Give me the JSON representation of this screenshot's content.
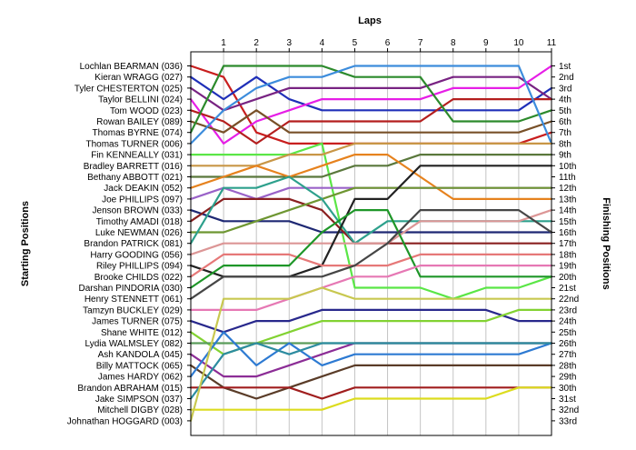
{
  "chart_data": {
    "type": "line",
    "title": "Laps",
    "ylabel_left": "Starting Positions",
    "ylabel_right": "Finishing Positions",
    "x": [
      0,
      1,
      2,
      3,
      4,
      5,
      6,
      7,
      8,
      9,
      10,
      11
    ],
    "x_tick_labels": [
      "1",
      "2",
      "3",
      "4",
      "5",
      "6",
      "7",
      "8",
      "9",
      "10",
      "11"
    ],
    "ylim": [
      1,
      33
    ],
    "y_inverted": true,
    "finishing_labels": [
      "1st",
      "2nd",
      "3rd",
      "4th",
      "5th",
      "6th",
      "7th",
      "8th",
      "9th",
      "10th",
      "11th",
      "12th",
      "13th",
      "14th",
      "15th",
      "16th",
      "17th",
      "18th",
      "19th",
      "20th",
      "21st",
      "22nd",
      "23rd",
      "24th",
      "25th",
      "26th",
      "27th",
      "28th",
      "29th",
      "30th",
      "31st",
      "32nd",
      "33rd"
    ],
    "series": [
      {
        "name": "Lochlan BEARMAN (036)",
        "color": "#c81e1e",
        "values": [
          1,
          2,
          7,
          8,
          8,
          8,
          8,
          8,
          8,
          8,
          8,
          7
        ]
      },
      {
        "name": "Kieran WRAGG (027)",
        "color": "#1f2fb8",
        "values": [
          2,
          4,
          2,
          4,
          5,
          5,
          5,
          5,
          5,
          5,
          5,
          3
        ]
      },
      {
        "name": "Tyler CHESTERTON (025)",
        "color": "#782382",
        "values": [
          3,
          5,
          4,
          3,
          3,
          3,
          3,
          3,
          2,
          2,
          2,
          4
        ]
      },
      {
        "name": "Taylor BELLINI (024)",
        "color": "#e61ee6",
        "values": [
          4,
          8,
          6,
          5,
          4,
          4,
          4,
          4,
          3,
          3,
          3,
          1
        ]
      },
      {
        "name": "Tom WOOD (023)",
        "color": "#b41e1e",
        "values": [
          5,
          6,
          8,
          6,
          6,
          6,
          6,
          6,
          4,
          4,
          4,
          4
        ]
      },
      {
        "name": "Rowan BAILEY (089)",
        "color": "#785028",
        "values": [
          6,
          7,
          5,
          7,
          7,
          7,
          7,
          7,
          7,
          7,
          7,
          6
        ]
      },
      {
        "name": "Thomas BYRNE (074)",
        "color": "#2c8a2c",
        "values": [
          7,
          1,
          1,
          1,
          1,
          2,
          2,
          2,
          6,
          6,
          6,
          5
        ]
      },
      {
        "name": "Thomas TURNER (006)",
        "color": "#3c8cdc",
        "values": [
          8,
          5,
          3,
          2,
          2,
          1,
          1,
          1,
          1,
          1,
          1,
          8
        ]
      },
      {
        "name": "Fin KENNEALLY (031)",
        "color": "#5ae646",
        "values": [
          9,
          9,
          9,
          9,
          8,
          21,
          21,
          21,
          22,
          21,
          21,
          20
        ]
      },
      {
        "name": "Bradley BARRETT (016)",
        "color": "#c89646",
        "values": [
          10,
          10,
          10,
          9,
          9,
          8,
          8,
          8,
          8,
          8,
          8,
          8
        ]
      },
      {
        "name": "Bethany ABBOTT (021)",
        "color": "#5a783c",
        "values": [
          11,
          11,
          11,
          11,
          11,
          10,
          10,
          9,
          9,
          9,
          9,
          9
        ]
      },
      {
        "name": "Jack DEAKIN (052)",
        "color": "#e6821e",
        "values": [
          12,
          11,
          10,
          11,
          10,
          9,
          9,
          11,
          13,
          13,
          13,
          13
        ]
      },
      {
        "name": "Joe PHILLIPS (097)",
        "color": "#9a62c8",
        "values": [
          13,
          12,
          13,
          12,
          12,
          12,
          12,
          12,
          12,
          12,
          12,
          12
        ]
      },
      {
        "name": "Jenson BROWN (033)",
        "color": "#1e2873",
        "values": [
          14,
          15,
          15,
          15,
          16,
          16,
          16,
          16,
          16,
          16,
          16,
          16
        ]
      },
      {
        "name": "Timothy AMADI (018)",
        "color": "#8a2020",
        "values": [
          15,
          13,
          13,
          13,
          14,
          17,
          17,
          17,
          17,
          17,
          17,
          17
        ]
      },
      {
        "name": "Luke NEWMAN (026)",
        "color": "#6e9632",
        "values": [
          16,
          16,
          15,
          14,
          13,
          12,
          12,
          12,
          12,
          12,
          12,
          12
        ]
      },
      {
        "name": "Brandon PATRICK (081)",
        "color": "#2da08c",
        "values": [
          17,
          12,
          12,
          11,
          13,
          17,
          15,
          15,
          15,
          15,
          15,
          15
        ]
      },
      {
        "name": "Harry GOODING (056)",
        "color": "#dc9696",
        "values": [
          18,
          17,
          17,
          17,
          17,
          17,
          17,
          15,
          15,
          15,
          15,
          14
        ]
      },
      {
        "name": "Riley PHILLIPS (094)",
        "color": "#222222",
        "values": [
          19,
          20,
          20,
          20,
          19,
          13,
          13,
          10,
          10,
          10,
          10,
          10
        ]
      },
      {
        "name": "Brooke CHILDS (022)",
        "color": "#e67878",
        "values": [
          20,
          18,
          18,
          18,
          19,
          19,
          19,
          18,
          18,
          18,
          18,
          18
        ]
      },
      {
        "name": "Darshan PINDORIA (030)",
        "color": "#1e9628",
        "values": [
          21,
          19,
          19,
          19,
          16,
          14,
          14,
          20,
          20,
          20,
          20,
          20
        ]
      },
      {
        "name": "Henry STENNETT (061)",
        "color": "#464646",
        "values": [
          22,
          20,
          20,
          20,
          20,
          19,
          17,
          14,
          14,
          14,
          14,
          16
        ]
      },
      {
        "name": "Tamzyn BUCKLEY (029)",
        "color": "#e678b4",
        "values": [
          23,
          23,
          23,
          22,
          21,
          20,
          20,
          19,
          19,
          19,
          19,
          19
        ]
      },
      {
        "name": "James TURNER (075)",
        "color": "#28288c",
        "values": [
          24,
          25,
          24,
          24,
          23,
          23,
          23,
          23,
          23,
          23,
          24,
          24
        ]
      },
      {
        "name": "Shane WHITE (012)",
        "color": "#82d232",
        "values": [
          25,
          27,
          26,
          25,
          24,
          24,
          24,
          24,
          24,
          24,
          23,
          23
        ]
      },
      {
        "name": "Lydia WALMSLEY (082)",
        "color": "#5a9c5a",
        "values": [
          26,
          26,
          26,
          26,
          26,
          26,
          26,
          26,
          26,
          26,
          26,
          26
        ]
      },
      {
        "name": "Ash KANDOLA (045)",
        "color": "#8c2d96",
        "values": [
          27,
          29,
          29,
          28,
          27,
          26,
          26,
          26,
          26,
          26,
          26,
          26
        ]
      },
      {
        "name": "Billy MATTOCK (065)",
        "color": "#5a3c28",
        "values": [
          28,
          30,
          31,
          30,
          29,
          28,
          28,
          28,
          28,
          28,
          28,
          28
        ]
      },
      {
        "name": "James HARDY (062)",
        "color": "#2d7ad2",
        "values": [
          29,
          25,
          28,
          26,
          28,
          27,
          27,
          27,
          27,
          27,
          27,
          26
        ]
      },
      {
        "name": "Brandon ABRAHAM (015)",
        "color": "#a01e1e",
        "values": [
          30,
          30,
          30,
          30,
          31,
          30,
          30,
          30,
          30,
          30,
          30,
          30
        ]
      },
      {
        "name": "Jake SIMPSON (037)",
        "color": "#2d8ca0",
        "values": [
          31,
          27,
          26,
          27,
          26,
          26,
          26,
          26,
          26,
          26,
          26,
          26
        ]
      },
      {
        "name": "Mitchell DIGBY (028)",
        "color": "#dcdc1e",
        "values": [
          32,
          32,
          32,
          32,
          32,
          31,
          31,
          31,
          31,
          31,
          30,
          30
        ]
      },
      {
        "name": "Johnathan HOGGARD (003)",
        "color": "#c8c850",
        "values": [
          33,
          22,
          22,
          22,
          21,
          22,
          22,
          22,
          22,
          22,
          22,
          22
        ]
      }
    ]
  }
}
